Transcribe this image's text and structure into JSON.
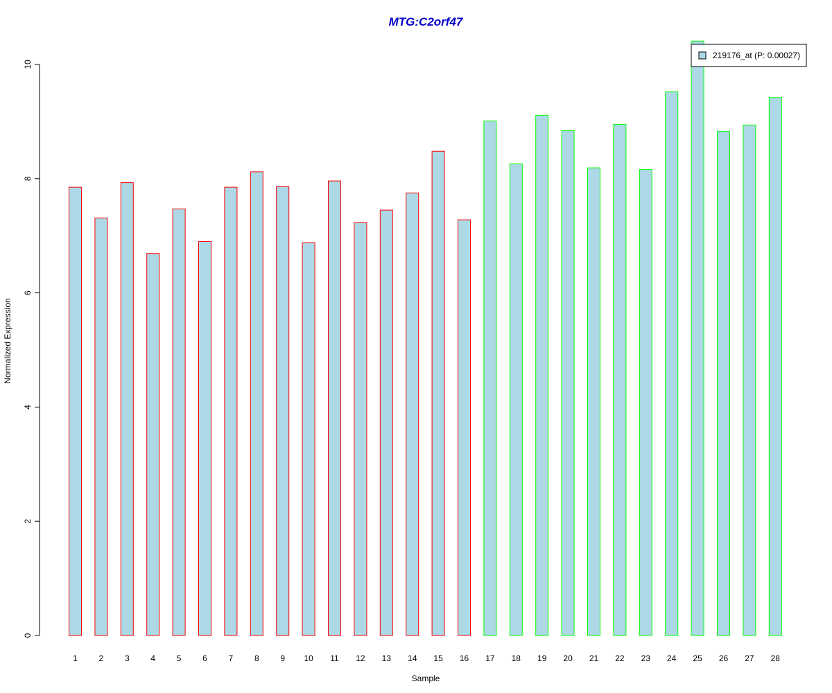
{
  "chart_data": {
    "type": "bar",
    "title": "MTG:C2orf47",
    "xlabel": "Sample",
    "ylabel": "Normalized Expression",
    "ylim": [
      0,
      10
    ],
    "yticks": [
      0,
      2,
      4,
      6,
      8,
      10
    ],
    "grid": false,
    "categories": [
      "1",
      "2",
      "3",
      "4",
      "5",
      "6",
      "7",
      "8",
      "9",
      "10",
      "11",
      "12",
      "13",
      "14",
      "15",
      "16",
      "17",
      "18",
      "19",
      "20",
      "21",
      "22",
      "23",
      "24",
      "25",
      "26",
      "27",
      "28"
    ],
    "values": [
      7.85,
      7.31,
      7.93,
      6.69,
      7.47,
      6.9,
      7.85,
      8.12,
      7.86,
      6.88,
      7.96,
      7.23,
      7.45,
      7.75,
      8.48,
      7.28,
      9.01,
      8.26,
      9.11,
      8.84,
      8.19,
      8.95,
      8.16,
      9.52,
      10.41,
      8.83,
      8.94,
      9.42
    ],
    "bar_fill": "#add8e6",
    "group_colors": {
      "group1": "#ff0000",
      "group2": "#00ff00"
    },
    "groups": [
      "group1",
      "group1",
      "group1",
      "group1",
      "group1",
      "group1",
      "group1",
      "group1",
      "group1",
      "group1",
      "group1",
      "group1",
      "group1",
      "group1",
      "group1",
      "group1",
      "group2",
      "group2",
      "group2",
      "group2",
      "group2",
      "group2",
      "group2",
      "group2",
      "group2",
      "group2",
      "group2",
      "group2"
    ],
    "title_color": "#0000cc",
    "legend": {
      "placement": "top-right",
      "entries": [
        {
          "label": "219176_at (P: 0.00027)",
          "color": "#add8e6"
        }
      ]
    }
  }
}
